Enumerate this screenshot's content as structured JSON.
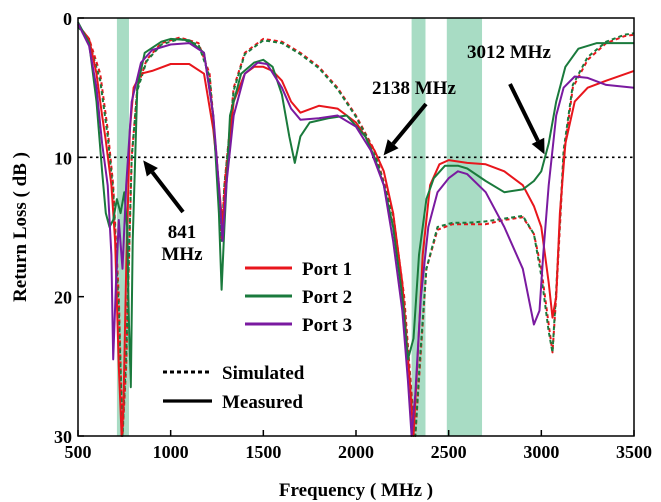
{
  "chart_data": {
    "type": "line",
    "title": "",
    "xlabel": "Frequency ( MHz )",
    "ylabel": "Return Loss ( dB )",
    "xlim": [
      500,
      3500
    ],
    "ylim": [
      0,
      30
    ],
    "y_inverted": true,
    "xticks": [
      500,
      1000,
      1500,
      2000,
      2500,
      3000,
      3500
    ],
    "yticks": [
      0,
      10,
      20,
      30
    ],
    "grid": false,
    "reference_line": {
      "y": 10,
      "style": "dotted"
    },
    "shaded_bands": [
      {
        "x": [
          710,
          775
        ],
        "color": "#a8dcc4"
      },
      {
        "x": [
          2300,
          2375
        ],
        "color": "#a8dcc4"
      },
      {
        "x": [
          2490,
          2680
        ],
        "color": "#a8dcc4"
      }
    ],
    "legend": {
      "position": "center-bottom",
      "ports": [
        {
          "label": "Port 1",
          "color": "#e8161c"
        },
        {
          "label": "Port 2",
          "color": "#1a7a3c"
        },
        {
          "label": "Port 3",
          "color": "#7a1aa0"
        }
      ],
      "styles": [
        {
          "label": "Simulated",
          "dash": true
        },
        {
          "label": "Measured",
          "dash": false
        }
      ]
    },
    "annotations": [
      {
        "text": [
          "841",
          "MHz"
        ],
        "x": 841,
        "y": 10
      },
      {
        "text": [
          "2138 MHz"
        ],
        "x": 2138,
        "y": 10
      },
      {
        "text": [
          "3012 MHz"
        ],
        "x": 3012,
        "y": 10
      }
    ],
    "series": [
      {
        "port": "Port 1",
        "style": "Measured",
        "color": "#e8161c",
        "dash": false,
        "points": [
          [
            500,
            0.5
          ],
          [
            560,
            1.5
          ],
          [
            600,
            4
          ],
          [
            630,
            7
          ],
          [
            650,
            8.8
          ],
          [
            680,
            12
          ],
          [
            700,
            16
          ],
          [
            720,
            25
          ],
          [
            735,
            30
          ],
          [
            745,
            28
          ],
          [
            760,
            18
          ],
          [
            780,
            8
          ],
          [
            800,
            5
          ],
          [
            840,
            4
          ],
          [
            900,
            3.8
          ],
          [
            1000,
            3.3
          ],
          [
            1100,
            3.3
          ],
          [
            1180,
            4
          ],
          [
            1230,
            8
          ],
          [
            1260,
            12
          ],
          [
            1280,
            15
          ],
          [
            1300,
            11
          ],
          [
            1340,
            6
          ],
          [
            1400,
            4
          ],
          [
            1450,
            3.5
          ],
          [
            1500,
            3.5
          ],
          [
            1550,
            3.8
          ],
          [
            1600,
            4.5
          ],
          [
            1650,
            6
          ],
          [
            1700,
            6.8
          ],
          [
            1800,
            6.3
          ],
          [
            1900,
            6.5
          ],
          [
            2000,
            7.5
          ],
          [
            2100,
            9.5
          ],
          [
            2150,
            11
          ],
          [
            2200,
            14
          ],
          [
            2250,
            19
          ],
          [
            2290,
            26
          ],
          [
            2310,
            30
          ],
          [
            2330,
            25
          ],
          [
            2360,
            17
          ],
          [
            2400,
            12
          ],
          [
            2450,
            10.5
          ],
          [
            2500,
            10.2
          ],
          [
            2550,
            10.3
          ],
          [
            2600,
            10.4
          ],
          [
            2700,
            10.5
          ],
          [
            2800,
            11
          ],
          [
            2900,
            12
          ],
          [
            2960,
            13.5
          ],
          [
            3000,
            15
          ],
          [
            3040,
            19
          ],
          [
            3060,
            21.5
          ],
          [
            3080,
            20
          ],
          [
            3100,
            14
          ],
          [
            3130,
            9
          ],
          [
            3180,
            6
          ],
          [
            3250,
            5
          ],
          [
            3350,
            4.5
          ],
          [
            3500,
            3.8
          ]
        ]
      },
      {
        "port": "Port 2",
        "style": "Measured",
        "color": "#1a7a3c",
        "dash": false,
        "points": [
          [
            500,
            0.3
          ],
          [
            560,
            1.8
          ],
          [
            600,
            6
          ],
          [
            630,
            11
          ],
          [
            650,
            14
          ],
          [
            670,
            15
          ],
          [
            690,
            14.5
          ],
          [
            710,
            13
          ],
          [
            730,
            14
          ],
          [
            750,
            12.5
          ],
          [
            765,
            15
          ],
          [
            775,
            22
          ],
          [
            785,
            26.5
          ],
          [
            795,
            16
          ],
          [
            820,
            5
          ],
          [
            860,
            2.5
          ],
          [
            950,
            1.7
          ],
          [
            1000,
            1.5
          ],
          [
            1100,
            1.6
          ],
          [
            1180,
            2.5
          ],
          [
            1230,
            7
          ],
          [
            1260,
            14
          ],
          [
            1275,
            19.5
          ],
          [
            1290,
            15
          ],
          [
            1320,
            7
          ],
          [
            1380,
            4
          ],
          [
            1450,
            3.2
          ],
          [
            1500,
            3
          ],
          [
            1550,
            3.5
          ],
          [
            1600,
            5.5
          ],
          [
            1640,
            8.5
          ],
          [
            1670,
            10.4
          ],
          [
            1700,
            8.5
          ],
          [
            1750,
            7.5
          ],
          [
            1850,
            7.2
          ],
          [
            1950,
            7
          ],
          [
            2050,
            8.5
          ],
          [
            2100,
            10
          ],
          [
            2150,
            12
          ],
          [
            2200,
            15
          ],
          [
            2250,
            20
          ],
          [
            2280,
            24.5
          ],
          [
            2310,
            23
          ],
          [
            2340,
            17
          ],
          [
            2380,
            13
          ],
          [
            2420,
            11.5
          ],
          [
            2480,
            10.6
          ],
          [
            2550,
            10.6
          ],
          [
            2600,
            10.8
          ],
          [
            2700,
            11.7
          ],
          [
            2800,
            12.5
          ],
          [
            2900,
            12.3
          ],
          [
            2960,
            11.7
          ],
          [
            3000,
            11
          ],
          [
            3040,
            9
          ],
          [
            3080,
            6
          ],
          [
            3130,
            3.5
          ],
          [
            3200,
            2.2
          ],
          [
            3300,
            1.8
          ],
          [
            3500,
            1.8
          ]
        ]
      },
      {
        "port": "Port 3",
        "style": "Measured",
        "color": "#7a1aa0",
        "dash": false,
        "points": [
          [
            500,
            0.4
          ],
          [
            560,
            2
          ],
          [
            600,
            5
          ],
          [
            630,
            9
          ],
          [
            660,
            12
          ],
          [
            680,
            17
          ],
          [
            690,
            24.5
          ],
          [
            705,
            19
          ],
          [
            720,
            14.5
          ],
          [
            740,
            18
          ],
          [
            760,
            12
          ],
          [
            790,
            6
          ],
          [
            840,
            3.2
          ],
          [
            900,
            2.3
          ],
          [
            1000,
            1.9
          ],
          [
            1100,
            1.8
          ],
          [
            1180,
            2.5
          ],
          [
            1230,
            7
          ],
          [
            1260,
            12
          ],
          [
            1280,
            16
          ],
          [
            1300,
            12
          ],
          [
            1340,
            7
          ],
          [
            1400,
            4
          ],
          [
            1470,
            3.2
          ],
          [
            1520,
            3.3
          ],
          [
            1600,
            5
          ],
          [
            1650,
            6.5
          ],
          [
            1700,
            7.3
          ],
          [
            1800,
            7.2
          ],
          [
            1900,
            7
          ],
          [
            2000,
            7.8
          ],
          [
            2080,
            9.5
          ],
          [
            2150,
            12
          ],
          [
            2200,
            16
          ],
          [
            2250,
            21
          ],
          [
            2280,
            26
          ],
          [
            2300,
            30
          ],
          [
            2320,
            27
          ],
          [
            2350,
            20
          ],
          [
            2390,
            15
          ],
          [
            2440,
            12.5
          ],
          [
            2500,
            11.5
          ],
          [
            2550,
            11
          ],
          [
            2600,
            11.2
          ],
          [
            2700,
            12.5
          ],
          [
            2800,
            15
          ],
          [
            2900,
            18
          ],
          [
            2960,
            22
          ],
          [
            2990,
            21
          ],
          [
            3010,
            17
          ],
          [
            3040,
            12
          ],
          [
            3080,
            7
          ],
          [
            3120,
            5
          ],
          [
            3180,
            4.2
          ],
          [
            3250,
            4.3
          ],
          [
            3350,
            4.8
          ],
          [
            3500,
            5
          ]
        ]
      },
      {
        "port": "Port 1",
        "style": "Simulated",
        "color": "#e8161c",
        "dash": true,
        "points": [
          [
            500,
            0.5
          ],
          [
            560,
            1.5
          ],
          [
            620,
            4
          ],
          [
            660,
            8
          ],
          [
            690,
            12
          ],
          [
            720,
            20
          ],
          [
            740,
            30
          ],
          [
            760,
            25
          ],
          [
            790,
            10
          ],
          [
            820,
            5
          ],
          [
            870,
            3
          ],
          [
            950,
            1.8
          ],
          [
            1050,
            1.4
          ],
          [
            1150,
            1.8
          ],
          [
            1210,
            4
          ],
          [
            1260,
            12
          ],
          [
            1275,
            16
          ],
          [
            1290,
            12
          ],
          [
            1340,
            5
          ],
          [
            1400,
            2.5
          ],
          [
            1500,
            1.5
          ],
          [
            1600,
            1.7
          ],
          [
            1700,
            2.5
          ],
          [
            1800,
            3.5
          ],
          [
            1900,
            5
          ],
          [
            2000,
            7
          ],
          [
            2100,
            9.5
          ],
          [
            2200,
            14
          ],
          [
            2260,
            20
          ],
          [
            2300,
            27
          ],
          [
            2320,
            30
          ],
          [
            2345,
            25
          ],
          [
            2380,
            18
          ],
          [
            2440,
            15.2
          ],
          [
            2520,
            14.8
          ],
          [
            2600,
            14.8
          ],
          [
            2700,
            14.8
          ],
          [
            2800,
            14.5
          ],
          [
            2900,
            14.3
          ],
          [
            2960,
            15.5
          ],
          [
            3000,
            18
          ],
          [
            3040,
            22
          ],
          [
            3060,
            24
          ],
          [
            3080,
            20
          ],
          [
            3120,
            10
          ],
          [
            3170,
            5
          ],
          [
            3250,
            3
          ],
          [
            3350,
            1.8
          ],
          [
            3450,
            1.3
          ],
          [
            3500,
            1.2
          ]
        ]
      },
      {
        "port": "Port 2",
        "style": "Simulated",
        "color": "#1a7a3c",
        "dash": true,
        "points": [
          [
            500,
            0.6
          ],
          [
            560,
            1.7
          ],
          [
            620,
            4.5
          ],
          [
            660,
            8.5
          ],
          [
            690,
            12.5
          ],
          [
            720,
            21
          ],
          [
            740,
            30
          ],
          [
            760,
            24
          ],
          [
            790,
            10
          ],
          [
            820,
            5.2
          ],
          [
            870,
            3.1
          ],
          [
            950,
            1.9
          ],
          [
            1050,
            1.5
          ],
          [
            1150,
            1.9
          ],
          [
            1210,
            4.2
          ],
          [
            1260,
            12.5
          ],
          [
            1275,
            16
          ],
          [
            1290,
            12
          ],
          [
            1340,
            5.2
          ],
          [
            1400,
            2.6
          ],
          [
            1500,
            1.6
          ],
          [
            1600,
            1.8
          ],
          [
            1700,
            2.6
          ],
          [
            1800,
            3.6
          ],
          [
            1900,
            5.1
          ],
          [
            2000,
            7.1
          ],
          [
            2100,
            9.6
          ],
          [
            2200,
            14.2
          ],
          [
            2260,
            20.5
          ],
          [
            2300,
            27.5
          ],
          [
            2320,
            30
          ],
          [
            2345,
            24.5
          ],
          [
            2380,
            18
          ],
          [
            2440,
            15
          ],
          [
            2520,
            14.7
          ],
          [
            2600,
            14.7
          ],
          [
            2700,
            14.6
          ],
          [
            2800,
            14.4
          ],
          [
            2900,
            14.2
          ],
          [
            2960,
            15.5
          ],
          [
            3000,
            18.5
          ],
          [
            3040,
            22.5
          ],
          [
            3060,
            24
          ],
          [
            3080,
            19.5
          ],
          [
            3120,
            9.5
          ],
          [
            3170,
            4.8
          ],
          [
            3250,
            2.8
          ],
          [
            3350,
            1.7
          ],
          [
            3450,
            1.2
          ],
          [
            3500,
            1.1
          ]
        ]
      }
    ]
  }
}
